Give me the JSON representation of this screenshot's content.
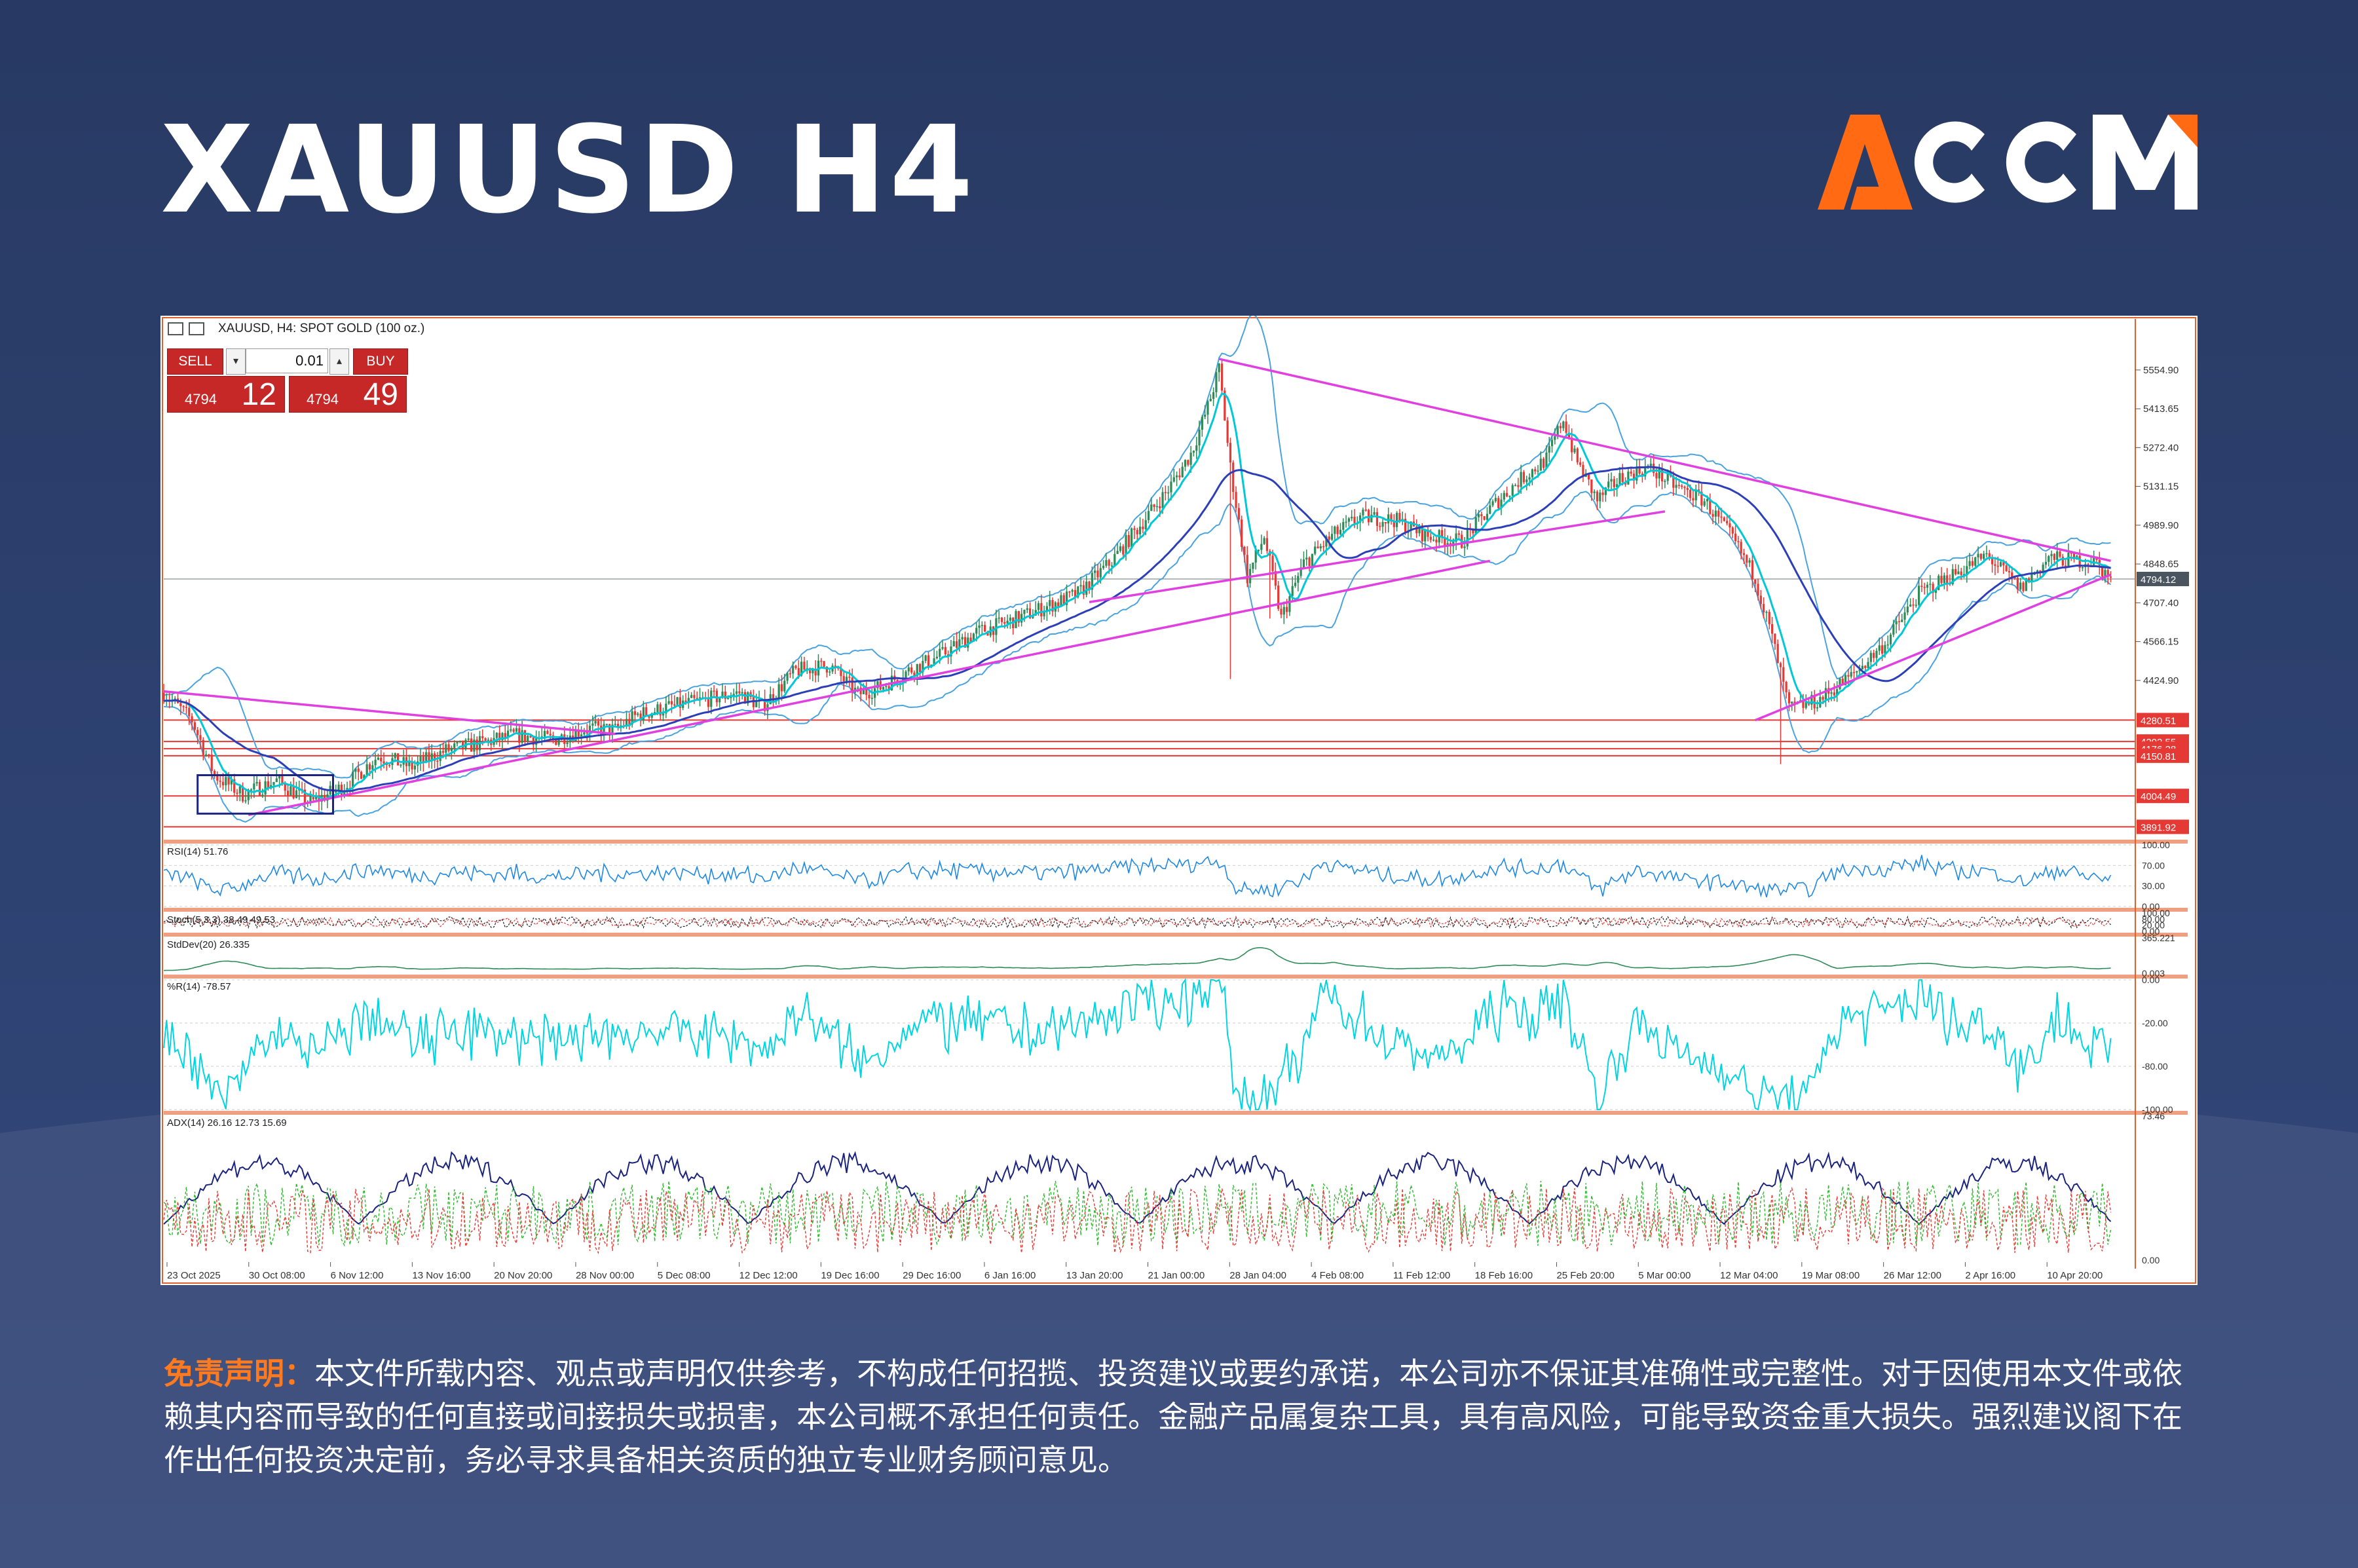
{
  "header": {
    "title": "XAUUSD H4"
  },
  "logo": {
    "text": "ACCM",
    "colors": {
      "accent": "#ff6a13",
      "text": "#ffffff"
    }
  },
  "chart_data": {
    "type": "candlestick",
    "title": "XAUUSD, H4: SPOT GOLD (100 oz.)",
    "trade_panel": {
      "sell_label": "SELL",
      "buy_label": "BUY",
      "lot": "0.01",
      "sell_price_small": "4794",
      "sell_price_big": "12",
      "buy_price_small": "4794",
      "buy_price_big": "49"
    },
    "current_price": 4794.12,
    "current_price_label": "4794.12",
    "ylim": [
      3850,
      5700
    ],
    "price_ticks": [
      "5554.90",
      "5413.65",
      "5272.40",
      "5131.15",
      "4989.90",
      "4848.65",
      "4707.40",
      "4566.15",
      "4424.90"
    ],
    "horizontal_levels": [
      {
        "label": "4280.51",
        "value": 4280.51
      },
      {
        "label": "4202.55",
        "value": 4202.55
      },
      {
        "label": "4176.28",
        "value": 4176.28
      },
      {
        "label": "4150.81",
        "value": 4150.81
      },
      {
        "label": "4004.49",
        "value": 4004.49
      },
      {
        "label": "3891.92",
        "value": 3891.92
      }
    ],
    "x_ticks": [
      "23 Oct 2025",
      "30 Oct 08:00",
      "6 Nov 12:00",
      "13 Nov 16:00",
      "20 Nov 20:00",
      "28 Nov 00:00",
      "5 Dec 08:00",
      "12 Dec 12:00",
      "19 Dec 16:00",
      "29 Dec 16:00",
      "6 Jan 16:00",
      "13 Jan 20:00",
      "21 Jan 00:00",
      "28 Jan 04:00",
      "4 Feb 08:00",
      "11 Feb 12:00",
      "18 Feb 16:00",
      "25 Feb 20:00",
      "5 Mar 00:00",
      "12 Mar 04:00",
      "19 Mar 08:00",
      "26 Mar 12:00",
      "2 Apr 16:00",
      "10 Apr 20:00"
    ],
    "price_path": [
      [
        0,
        4380
      ],
      [
        10,
        4280
      ],
      [
        18,
        4080
      ],
      [
        28,
        4010
      ],
      [
        40,
        4060
      ],
      [
        52,
        3980
      ],
      [
        64,
        4040
      ],
      [
        76,
        4150
      ],
      [
        88,
        4110
      ],
      [
        100,
        4170
      ],
      [
        112,
        4195
      ],
      [
        124,
        4225
      ],
      [
        138,
        4210
      ],
      [
        150,
        4250
      ],
      [
        160,
        4245
      ],
      [
        168,
        4300
      ],
      [
        180,
        4330
      ],
      [
        192,
        4355
      ],
      [
        204,
        4380
      ],
      [
        212,
        4330
      ],
      [
        224,
        4460
      ],
      [
        236,
        4480
      ],
      [
        246,
        4375
      ],
      [
        254,
        4400
      ],
      [
        264,
        4460
      ],
      [
        276,
        4520
      ],
      [
        288,
        4600
      ],
      [
        300,
        4640
      ],
      [
        312,
        4690
      ],
      [
        324,
        4740
      ],
      [
        336,
        4860
      ],
      [
        346,
        4990
      ],
      [
        356,
        5120
      ],
      [
        364,
        5250
      ],
      [
        370,
        5420
      ],
      [
        374,
        5560
      ],
      [
        378,
        5200
      ],
      [
        384,
        4800
      ],
      [
        390,
        4950
      ],
      [
        396,
        4650
      ],
      [
        404,
        4850
      ],
      [
        414,
        4950
      ],
      [
        424,
        5020
      ],
      [
        436,
        5010
      ],
      [
        448,
        4950
      ],
      [
        460,
        4930
      ],
      [
        470,
        5050
      ],
      [
        480,
        5150
      ],
      [
        490,
        5230
      ],
      [
        496,
        5380
      ],
      [
        500,
        5240
      ],
      [
        508,
        5080
      ],
      [
        516,
        5160
      ],
      [
        526,
        5200
      ],
      [
        536,
        5130
      ],
      [
        546,
        5080
      ],
      [
        556,
        4940
      ],
      [
        564,
        4800
      ],
      [
        570,
        4580
      ],
      [
        576,
        4320
      ],
      [
        586,
        4350
      ],
      [
        598,
        4440
      ],
      [
        610,
        4560
      ],
      [
        622,
        4740
      ],
      [
        634,
        4810
      ],
      [
        646,
        4880
      ],
      [
        658,
        4760
      ],
      [
        668,
        4870
      ],
      [
        678,
        4860
      ],
      [
        684,
        4860
      ],
      [
        690,
        4794
      ]
    ],
    "trend_lines": [
      {
        "from": [
          0,
          4385
        ],
        "to": [
          160,
          4230
        ]
      },
      {
        "from": [
          30,
          3935
        ],
        "to": [
          470,
          4860
        ]
      },
      {
        "from": [
          328,
          4710
        ],
        "to": [
          532,
          5040
        ]
      },
      {
        "from": [
          374,
          5595
        ],
        "to": [
          690,
          4860
        ]
      },
      {
        "from": [
          564,
          4280
        ],
        "to": [
          690,
          4810
        ]
      }
    ],
    "highlight_box": {
      "from": [
        12,
        3940
      ],
      "to": [
        60,
        4080
      ]
    },
    "indicators": [
      {
        "name": "RSI",
        "label": "RSI(14) 51.76",
        "ylim": [
          0,
          100
        ],
        "ticks": [
          "100.00",
          "70.00",
          "30.00",
          "0.00"
        ]
      },
      {
        "name": "Stochastic",
        "label": "Stoch(5,3,3) 38.49 49.53",
        "ylim": [
          0,
          100
        ],
        "ticks": [
          "100.00",
          "80.00",
          "20.00",
          "0.00"
        ]
      },
      {
        "name": "StdDev",
        "label": "StdDev(20) 26.335",
        "ticks": [
          "365.221",
          "0.003"
        ]
      },
      {
        "name": "Williams %R",
        "label": "%R(14) -78.57",
        "ylim": [
          -100,
          0
        ],
        "ticks": [
          "0.00",
          "-20.00",
          "-80.00",
          "-100.00"
        ]
      },
      {
        "name": "ADX",
        "label": "ADX(14) 26.16 12.73 15.69",
        "ticks": [
          "73.46",
          "0.00"
        ]
      }
    ],
    "colors": {
      "candle_up": "#2e8b57",
      "candle_down": "#e53935",
      "bollinger": "#4aa3df",
      "ma_fast": "#00c8d6",
      "ma_slow": "#2d3fb8",
      "trendline": "#e040e0",
      "level": "#e53935",
      "rsi": "#1e88e5",
      "williams": "#00d5e0",
      "adx": "#1a237e",
      "plus_di": "#2eb82e",
      "minus_di": "#e53935"
    }
  },
  "disclaimer": {
    "label": "免责声明：",
    "text": "本文件所载内容、观点或声明仅供参考，不构成任何招揽、投资建议或要约承诺，本公司亦不保证其准确性或完整性。对于因使用本文件或依赖其内容而导致的任何直接或间接损失或损害，本公司概不承担任何责任。金融产品属复杂工具，具有高风险，可能导致资金重大损失。强烈建议阁下在作出任何投资决定前，务必寻求具备相关资质的独立专业财务顾问意见。"
  }
}
